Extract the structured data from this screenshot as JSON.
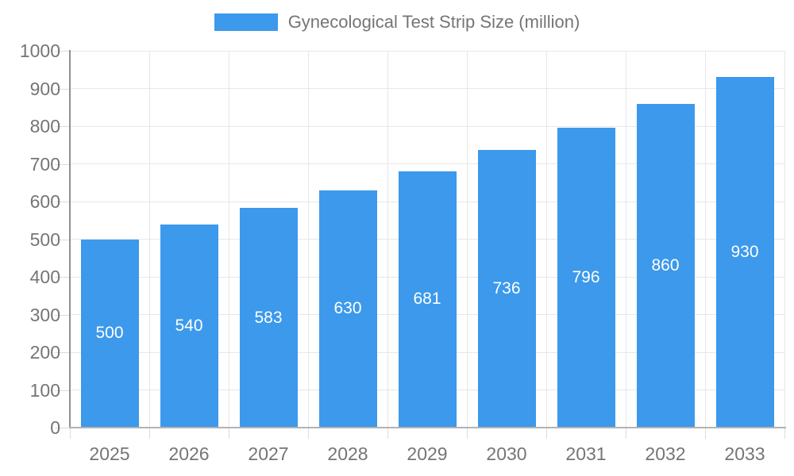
{
  "legend": {
    "label": "Gynecological Test Strip Size (million)"
  },
  "chart_data": {
    "type": "bar",
    "title": "Gynecological Test Strip Size (million)",
    "series_name": "Gynecological Test Strip Size (million)",
    "categories": [
      "2025",
      "2026",
      "2027",
      "2028",
      "2029",
      "2030",
      "2031",
      "2032",
      "2033"
    ],
    "values": [
      500,
      540,
      583,
      630,
      681,
      736,
      796,
      860,
      930
    ],
    "value_labels": [
      "500",
      "540",
      "583",
      "630",
      "681",
      "736",
      "796",
      "860",
      "930"
    ],
    "xlabel": "",
    "ylabel": "",
    "ylim": [
      0,
      1000
    ],
    "yticks": [
      0,
      100,
      200,
      300,
      400,
      500,
      600,
      700,
      800,
      900,
      1000
    ],
    "grid": true,
    "legend_position": "top-center",
    "value_label_position": "inside-center"
  },
  "theme": {
    "bar_color": "#3C99EB",
    "grid_color": "#e7e7e7",
    "tick_color": "#dcdcdc",
    "yaxis_line_color": "#909090",
    "xaxis_line_color": "#b3b3b3",
    "axis_text_color": "#757575",
    "value_text_color": "#ffffff",
    "background_color": "#ffffff"
  }
}
